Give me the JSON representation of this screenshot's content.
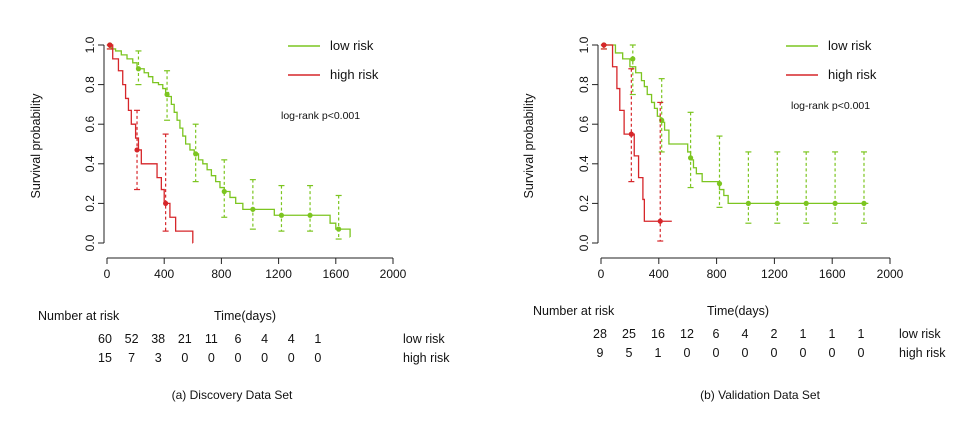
{
  "chart_data": [
    {
      "type": "line",
      "subtype": "kaplan-meier",
      "ylabel": "Survival probability",
      "xlabel": "Time(days)",
      "xlim": [
        0,
        2000
      ],
      "ylim": [
        0,
        1.0
      ],
      "xticks": [
        "0",
        "400",
        "800",
        "1200",
        "1600",
        "2000"
      ],
      "yticks": [
        "0.0",
        "0.2",
        "0.4",
        "0.6",
        "0.8",
        "1.0"
      ],
      "annotation": "log-rank p<0.001",
      "legend_position": "top-right",
      "series": [
        {
          "name": "low risk",
          "color": "#7cc520",
          "steps": [
            [
              0,
              1.0
            ],
            [
              30,
              0.98
            ],
            [
              60,
              0.97
            ],
            [
              100,
              0.95
            ],
            [
              140,
              0.93
            ],
            [
              180,
              0.91
            ],
            [
              210,
              0.88
            ],
            [
              260,
              0.86
            ],
            [
              290,
              0.84
            ],
            [
              320,
              0.81
            ],
            [
              360,
              0.8
            ],
            [
              390,
              0.78
            ],
            [
              410,
              0.76
            ],
            [
              430,
              0.74
            ],
            [
              450,
              0.7
            ],
            [
              470,
              0.66
            ],
            [
              490,
              0.62
            ],
            [
              510,
              0.58
            ],
            [
              530,
              0.54
            ],
            [
              550,
              0.5
            ],
            [
              580,
              0.47
            ],
            [
              610,
              0.45
            ],
            [
              640,
              0.42
            ],
            [
              670,
              0.4
            ],
            [
              700,
              0.37
            ],
            [
              730,
              0.34
            ],
            [
              760,
              0.31
            ],
            [
              790,
              0.28
            ],
            [
              820,
              0.26
            ],
            [
              860,
              0.23
            ],
            [
              900,
              0.2
            ],
            [
              950,
              0.17
            ],
            [
              1100,
              0.17
            ],
            [
              1170,
              0.14
            ],
            [
              1500,
              0.14
            ],
            [
              1560,
              0.1
            ],
            [
              1600,
              0.07
            ],
            [
              1700,
              0.03
            ]
          ],
          "ci_points": [
            {
              "x": 20,
              "y": 1.0,
              "lo": 0.98,
              "hi": 1.0
            },
            {
              "x": 220,
              "y": 0.88,
              "lo": 0.8,
              "hi": 0.97
            },
            {
              "x": 420,
              "y": 0.75,
              "lo": 0.62,
              "hi": 0.87
            },
            {
              "x": 620,
              "y": 0.45,
              "lo": 0.31,
              "hi": 0.6
            },
            {
              "x": 820,
              "y": 0.26,
              "lo": 0.13,
              "hi": 0.42
            },
            {
              "x": 1020,
              "y": 0.17,
              "lo": 0.07,
              "hi": 0.32
            },
            {
              "x": 1220,
              "y": 0.14,
              "lo": 0.06,
              "hi": 0.29
            },
            {
              "x": 1420,
              "y": 0.14,
              "lo": 0.06,
              "hi": 0.29
            },
            {
              "x": 1620,
              "y": 0.07,
              "lo": 0.02,
              "hi": 0.24
            }
          ],
          "at_risk_label": "low risk",
          "at_risk": [
            60,
            52,
            38,
            21,
            11,
            6,
            4,
            4,
            1
          ]
        },
        {
          "name": "high risk",
          "color": "#d6262a",
          "steps": [
            [
              0,
              1.0
            ],
            [
              40,
              0.93
            ],
            [
              80,
              0.87
            ],
            [
              110,
              0.8
            ],
            [
              130,
              0.73
            ],
            [
              150,
              0.67
            ],
            [
              170,
              0.6
            ],
            [
              200,
              0.53
            ],
            [
              220,
              0.47
            ],
            [
              240,
              0.4
            ],
            [
              350,
              0.33
            ],
            [
              380,
              0.27
            ],
            [
              400,
              0.2
            ],
            [
              440,
              0.13
            ],
            [
              480,
              0.06
            ],
            [
              600,
              0.0
            ]
          ],
          "ci_points": [
            {
              "x": 20,
              "y": 1.0,
              "lo": 0.98,
              "hi": 1.0
            },
            {
              "x": 210,
              "y": 0.47,
              "lo": 0.27,
              "hi": 0.67
            },
            {
              "x": 410,
              "y": 0.2,
              "lo": 0.06,
              "hi": 0.55
            }
          ],
          "at_risk_label": "high risk",
          "at_risk": [
            15,
            7,
            3,
            0,
            0,
            0,
            0,
            0,
            0
          ]
        }
      ],
      "risk_table_title": "Number at risk",
      "caption": "(a) Discovery Data Set"
    },
    {
      "type": "line",
      "subtype": "kaplan-meier",
      "ylabel": "Survival probability",
      "xlabel": "Time(days)",
      "xlim": [
        0,
        2000
      ],
      "ylim": [
        0,
        1.0
      ],
      "xticks": [
        "0",
        "400",
        "800",
        "1200",
        "1600",
        "2000"
      ],
      "yticks": [
        "0.0",
        "0.2",
        "0.4",
        "0.6",
        "0.8",
        "1.0"
      ],
      "annotation": "log-rank p<0.001",
      "legend_position": "top-right",
      "series": [
        {
          "name": "low risk",
          "color": "#7cc520",
          "steps": [
            [
              0,
              1.0
            ],
            [
              100,
              0.96
            ],
            [
              150,
              0.93
            ],
            [
              200,
              0.89
            ],
            [
              240,
              0.86
            ],
            [
              280,
              0.82
            ],
            [
              300,
              0.79
            ],
            [
              320,
              0.75
            ],
            [
              350,
              0.71
            ],
            [
              370,
              0.68
            ],
            [
              390,
              0.64
            ],
            [
              410,
              0.61
            ],
            [
              440,
              0.57
            ],
            [
              470,
              0.5
            ],
            [
              600,
              0.46
            ],
            [
              620,
              0.42
            ],
            [
              640,
              0.38
            ],
            [
              660,
              0.35
            ],
            [
              700,
              0.31
            ],
            [
              820,
              0.27
            ],
            [
              850,
              0.24
            ],
            [
              880,
              0.2
            ],
            [
              1850,
              0.2
            ]
          ],
          "ci_points": [
            {
              "x": 20,
              "y": 1.0,
              "lo": 0.98,
              "hi": 1.0
            },
            {
              "x": 220,
              "y": 0.93,
              "lo": 0.75,
              "hi": 1.0
            },
            {
              "x": 420,
              "y": 0.62,
              "lo": 0.46,
              "hi": 0.83
            },
            {
              "x": 620,
              "y": 0.43,
              "lo": 0.28,
              "hi": 0.66
            },
            {
              "x": 820,
              "y": 0.3,
              "lo": 0.18,
              "hi": 0.54
            },
            {
              "x": 1020,
              "y": 0.2,
              "lo": 0.1,
              "hi": 0.46
            },
            {
              "x": 1220,
              "y": 0.2,
              "lo": 0.1,
              "hi": 0.46
            },
            {
              "x": 1420,
              "y": 0.2,
              "lo": 0.1,
              "hi": 0.46
            },
            {
              "x": 1620,
              "y": 0.2,
              "lo": 0.1,
              "hi": 0.46
            },
            {
              "x": 1820,
              "y": 0.2,
              "lo": 0.1,
              "hi": 0.46
            }
          ],
          "at_risk_label": "low risk",
          "at_risk": [
            28,
            25,
            16,
            12,
            6,
            4,
            2,
            1,
            1,
            1
          ]
        },
        {
          "name": "high risk",
          "color": "#d6262a",
          "steps": [
            [
              0,
              1.0
            ],
            [
              80,
              0.89
            ],
            [
              110,
              0.78
            ],
            [
              130,
              0.67
            ],
            [
              160,
              0.55
            ],
            [
              230,
              0.44
            ],
            [
              260,
              0.33
            ],
            [
              290,
              0.22
            ],
            [
              300,
              0.11
            ],
            [
              490,
              0.11
            ]
          ],
          "ci_points": [
            {
              "x": 20,
              "y": 1.0,
              "lo": 0.98,
              "hi": 1.0
            },
            {
              "x": 210,
              "y": 0.55,
              "lo": 0.31,
              "hi": 0.88
            },
            {
              "x": 410,
              "y": 0.11,
              "lo": 0.01,
              "hi": 0.71
            }
          ],
          "at_risk_label": "high risk",
          "at_risk": [
            9,
            5,
            1,
            0,
            0,
            0,
            0,
            0,
            0,
            0
          ]
        }
      ],
      "risk_table_title": "Number at risk",
      "caption": "(b) Validation Data Set"
    }
  ]
}
